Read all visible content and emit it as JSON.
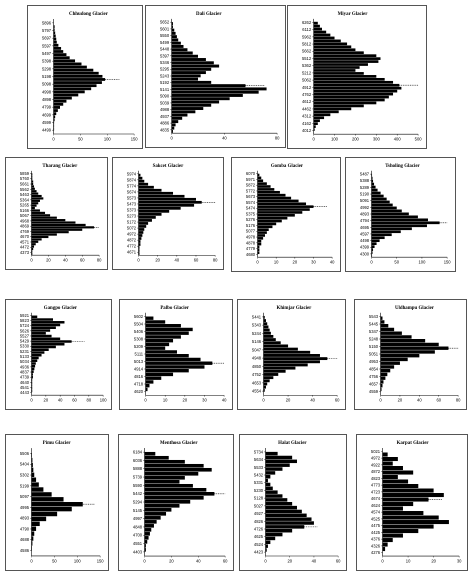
{
  "figure": {
    "panels": [
      {
        "title": "Chhudong Glacier",
        "xmax": 150,
        "xticks": [
          0,
          50,
          100,
          150
        ],
        "elev_labels": [
          "5896",
          "5797",
          "5697",
          "5597",
          "5497",
          "5398",
          "5298",
          "5198",
          "5098",
          "4998",
          "4898",
          "4799",
          "4699",
          "4599",
          "4499"
        ],
        "values": [
          0,
          0,
          2,
          2,
          3,
          4,
          5,
          6,
          9,
          14,
          18,
          24,
          30,
          40,
          52,
          62,
          74,
          84,
          91,
          96,
          90,
          80,
          70,
          58,
          46,
          34,
          24,
          18,
          12,
          8,
          5,
          3,
          2,
          1,
          1,
          1,
          0
        ],
        "mean_elev_index": 19
      },
      {
        "title": "Dali Glacier",
        "xmax": 80,
        "xticks": [
          0,
          40,
          80
        ],
        "elev_labels": [
          "5652",
          "5601",
          "5550",
          "5499",
          "5448",
          "5397",
          "5346",
          "5295",
          "5243",
          "5192",
          "5141",
          "5090",
          "5039",
          "4988",
          "4937",
          "4886",
          "4835"
        ],
        "values": [
          0,
          1,
          1,
          2,
          3,
          4,
          5,
          7,
          9,
          12,
          16,
          20,
          26,
          32,
          36,
          30,
          26,
          22,
          20,
          30,
          56,
          72,
          66,
          54,
          44,
          36,
          30,
          24,
          18,
          12,
          8,
          5,
          3,
          2,
          1
        ],
        "mean_elev_index": 20
      },
      {
        "title": "Miyar Glacier",
        "xmax": 500,
        "xticks": [
          0,
          100,
          200,
          300,
          400,
          500
        ],
        "elev_labels": [
          "6262",
          "6112",
          "5962",
          "5812",
          "5662",
          "5512",
          "5362",
          "5212",
          "5062",
          "4912",
          "4762",
          "4612",
          "4462",
          "4312",
          "4162",
          "4012"
        ],
        "values": [
          0,
          20,
          30,
          40,
          60,
          80,
          100,
          130,
          160,
          180,
          200,
          240,
          300,
          320,
          310,
          260,
          220,
          200,
          240,
          300,
          340,
          380,
          410,
          420,
          400,
          380,
          360,
          340,
          300,
          240,
          180,
          120,
          80,
          50,
          30,
          20,
          10,
          5,
          0
        ],
        "mean_elev_index": 22
      },
      {
        "title": "Tharang Glacier",
        "xmax": 80,
        "xticks": [
          0,
          20,
          40,
          60,
          80
        ],
        "elev_labels": [
          "5859",
          "5760",
          "5661",
          "5562",
          "5463",
          "5364",
          "5265",
          "5166",
          "5067",
          "4968",
          "4869",
          "4769",
          "4670",
          "4571",
          "4472",
          "4373"
        ],
        "values": [
          0,
          1,
          1,
          1,
          2,
          2,
          3,
          4,
          6,
          8,
          12,
          14,
          10,
          8,
          6,
          4,
          10,
          16,
          22,
          30,
          40,
          52,
          64,
          74,
          60,
          44,
          30,
          20,
          12,
          8,
          5,
          3,
          2,
          1,
          1
        ],
        "mean_elev_index": 23
      },
      {
        "title": "Sakcet Glacier",
        "xmax": 80,
        "xticks": [
          0,
          20,
          40,
          60,
          80
        ],
        "elev_labels": [
          "5974",
          "5874",
          "5774",
          "5674",
          "5573",
          "5473",
          "5373",
          "5273",
          "5172",
          "5072",
          "4972",
          "4872",
          "4772",
          "4671"
        ],
        "values": [
          0,
          2,
          4,
          6,
          10,
          16,
          24,
          36,
          48,
          60,
          66,
          58,
          44,
          32,
          24,
          18,
          14,
          10,
          8,
          6,
          5,
          4,
          3,
          2,
          2,
          1,
          1,
          1
        ],
        "mean_elev_index": 10
      },
      {
        "title": "Gomba Glacier",
        "xmax": 40,
        "xticks": [
          0,
          10,
          20,
          30,
          40
        ],
        "elev_labels": [
          "6070",
          "5971",
          "5872",
          "5772",
          "5673",
          "5574",
          "5474",
          "5375",
          "5276",
          "5176",
          "5077",
          "4978",
          "4878",
          "4779",
          "4680"
        ],
        "values": [
          0,
          1,
          2,
          3,
          5,
          7,
          9,
          12,
          15,
          18,
          22,
          26,
          30,
          28,
          24,
          20,
          16,
          13,
          10,
          8,
          6,
          5,
          4,
          3,
          2,
          2,
          1,
          1,
          1,
          0
        ],
        "mean_elev_index": 12
      },
      {
        "title": "Tsholing Glacier",
        "xmax": 150,
        "xticks": [
          0,
          50,
          100,
          150
        ],
        "elev_labels": [
          "5487",
          "5388",
          "5289",
          "5190",
          "5091",
          "4992",
          "4893",
          "4794",
          "4695",
          "4597",
          "4498",
          "4399",
          "4300"
        ],
        "values": [
          0,
          1,
          2,
          3,
          5,
          8,
          12,
          18,
          24,
          30,
          36,
          42,
          50,
          60,
          74,
          92,
          112,
          135,
          110,
          80,
          58,
          40,
          26,
          16,
          10,
          6,
          3,
          2,
          1
        ],
        "mean_elev_index": 17
      },
      {
        "title": "Gangpo Glacier",
        "xmax": 100,
        "xticks": [
          0,
          20,
          40,
          60,
          80,
          100
        ],
        "elev_labels": [
          "5921",
          "5823",
          "5724",
          "5626",
          "5527",
          "5429",
          "5330",
          "5231",
          "5133",
          "5034",
          "4936",
          "4837",
          "4739",
          "4640",
          "4541",
          "4443"
        ],
        "values": [
          0,
          8,
          30,
          46,
          40,
          34,
          26,
          20,
          28,
          40,
          56,
          46,
          34,
          24,
          18,
          14,
          10,
          8,
          6,
          5,
          4,
          3,
          2,
          2,
          1,
          1,
          1,
          1,
          1,
          0
        ],
        "mean_elev_index": 10
      },
      {
        "title": "Palbo Glacier",
        "xmax": 40,
        "xticks": [
          0,
          10,
          20,
          30,
          40
        ],
        "elev_labels": [
          "5602",
          "5504",
          "5406",
          "5308",
          "5209",
          "5111",
          "5013",
          "4914",
          "4816",
          "4718",
          "4620"
        ],
        "values": [
          0,
          4,
          10,
          18,
          24,
          22,
          18,
          14,
          12,
          10,
          16,
          22,
          28,
          34,
          30,
          22,
          14,
          8,
          4,
          2,
          1,
          0
        ],
        "mean_elev_index": 13
      },
      {
        "title": "Khimjar Glacier",
        "xmax": 60,
        "xticks": [
          0,
          20,
          40,
          60
        ],
        "elev_labels": [
          "5441",
          "5343",
          "5244",
          "5146",
          "5047",
          "4948",
          "4850",
          "4752",
          "4653",
          "4554"
        ],
        "values": [
          0,
          1,
          2,
          3,
          4,
          5,
          6,
          8,
          10,
          14,
          20,
          28,
          38,
          46,
          52,
          46,
          36,
          26,
          18,
          12,
          8,
          5,
          3,
          2,
          1,
          0
        ],
        "mean_elev_index": 14
      },
      {
        "title": "Uldhampu Glacier",
        "xmax": 80,
        "xticks": [
          0,
          20,
          40,
          60,
          80
        ],
        "elev_labels": [
          "5543",
          "5445",
          "5347",
          "5248",
          "5150",
          "5051",
          "4953",
          "4854",
          "4756",
          "4657",
          "4559"
        ],
        "values": [
          0,
          2,
          4,
          8,
          14,
          22,
          32,
          46,
          60,
          70,
          56,
          40,
          28,
          20,
          14,
          10,
          7,
          5,
          3,
          2,
          1,
          0
        ],
        "mean_elev_index": 9
      },
      {
        "title": "Pimu Glacier",
        "xmax": 150,
        "xticks": [
          0,
          50,
          100,
          150
        ],
        "elev_labels": [
          "5506",
          "5404",
          "5302",
          "5199",
          "5097",
          "4995",
          "4893",
          "4790",
          "4688",
          "4586"
        ],
        "values": [
          0,
          1,
          2,
          3,
          4,
          6,
          10,
          16,
          26,
          44,
          70,
          112,
          88,
          56,
          32,
          18,
          10,
          6,
          4,
          2,
          1,
          0
        ],
        "mean_elev_index": 11
      },
      {
        "title": "Menthosa Glacier",
        "xmax": 60,
        "xticks": [
          0,
          20,
          40,
          60
        ],
        "elev_labels": [
          "6184",
          "6036",
          "5888",
          "5739",
          "5590",
          "5442",
          "5294",
          "5145",
          "4997",
          "4848",
          "4700",
          "4551",
          "4403"
        ],
        "values": [
          0,
          8,
          18,
          30,
          44,
          50,
          40,
          30,
          26,
          36,
          46,
          52,
          44,
          34,
          26,
          20,
          16,
          12,
          9,
          7,
          5,
          4,
          3,
          2,
          1,
          1,
          0
        ],
        "mean_elev_index": 11
      },
      {
        "title": "Halat Glacier",
        "xmax": 60,
        "xticks": [
          0,
          20,
          40,
          60
        ],
        "elev_labels": [
          "5734",
          "5634",
          "5533",
          "5432",
          "5331",
          "5230",
          "5128",
          "5027",
          "4927",
          "4826",
          "4726",
          "4625",
          "4524",
          "4423"
        ],
        "values": [
          0,
          10,
          22,
          26,
          20,
          14,
          8,
          4,
          2,
          4,
          6,
          10,
          14,
          18,
          22,
          26,
          30,
          34,
          38,
          40,
          32,
          22,
          14,
          8,
          4,
          2,
          1,
          0
        ],
        "mean_elev_index": 20
      },
      {
        "title": "Karpat Glacier",
        "xmax": 30,
        "xticks": [
          0,
          10,
          20,
          30
        ],
        "elev_labels": [
          "5021",
          "4972",
          "4922",
          "4872",
          "4823",
          "4773",
          "4723",
          "4674",
          "4624",
          "4574",
          "4525",
          "4475",
          "4425",
          "4376",
          "4326",
          "4276"
        ],
        "values": [
          0,
          2,
          6,
          4,
          8,
          12,
          6,
          10,
          14,
          20,
          24,
          18,
          12,
          8,
          16,
          22,
          26,
          20,
          14,
          8,
          4,
          2,
          1,
          0
        ],
        "mean_elev_index": 11
      }
    ]
  }
}
